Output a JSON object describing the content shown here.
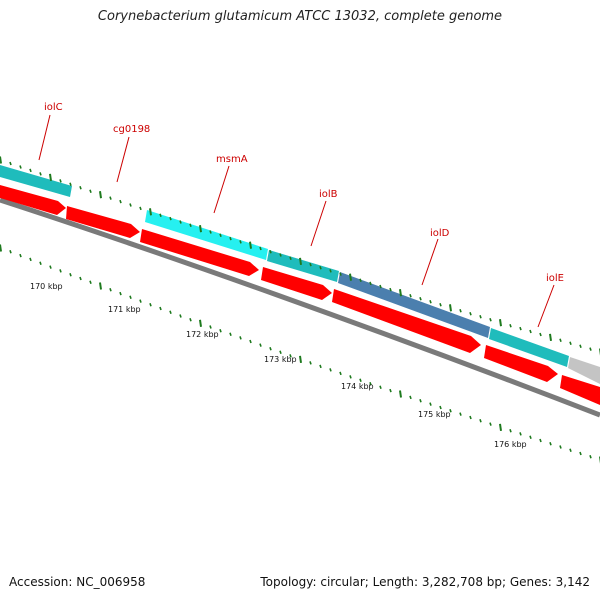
{
  "title": "Corynebacterium glutamicum ATCC 13032, complete genome",
  "footer": {
    "accession": "Accession: NC_006958",
    "summary": "Topology: circular; Length: 3,282,708 bp; Genes: 3,142"
  },
  "colors": {
    "cds_red": "#ff0000",
    "outer_teal": "#1fbcbc",
    "outer_cyan": "#26f0f0",
    "outer_blue": "#4b7fae",
    "outer_gray": "#c4c4c4",
    "backbone": "#7a7a7a",
    "tick_green": "#1e7a1e",
    "label_red": "#cc0000"
  },
  "gene_labels": [
    "iolC",
    "cg0198",
    "msmA",
    "iolB",
    "iolD",
    "iolE"
  ],
  "scale_labels": [
    "170 kbp",
    "171 kbp",
    "172 kbp",
    "173 kbp",
    "174 kbp",
    "175 kbp",
    "176 kbp"
  ]
}
